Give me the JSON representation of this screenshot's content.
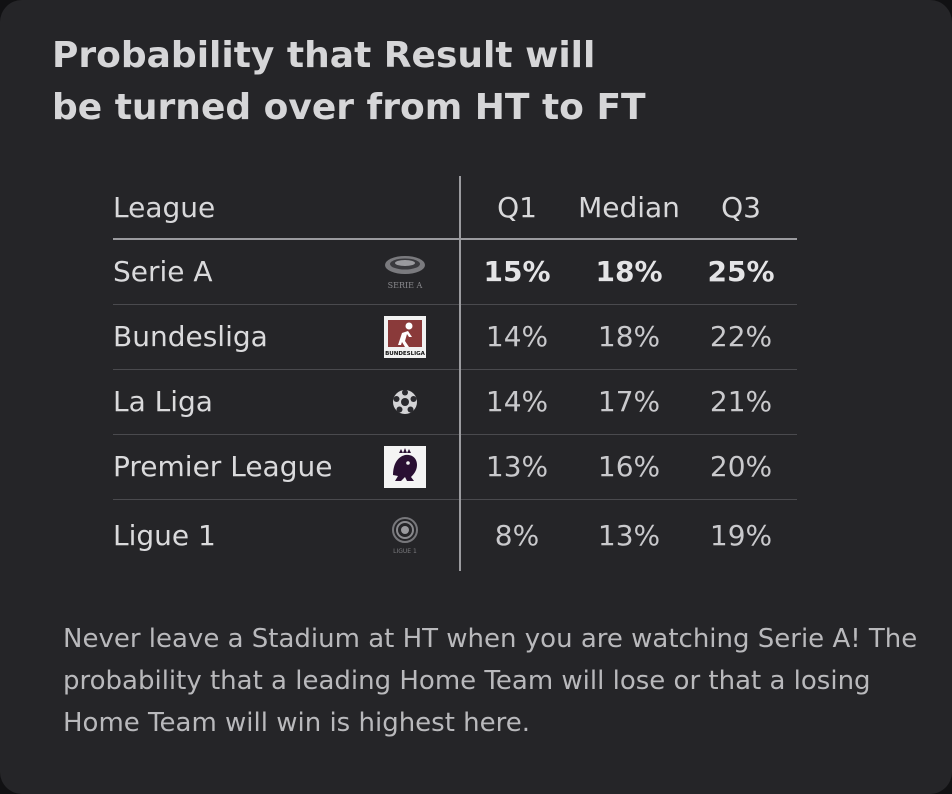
{
  "title": {
    "line1": "Probability that Result will",
    "line2": "be turned over from HT to FT"
  },
  "chart_data": {
    "type": "table",
    "columns": [
      "League",
      "Q1",
      "Median",
      "Q3"
    ],
    "rows": [
      {
        "league": "Serie A",
        "logo": "serie-a-logo",
        "q1": "15%",
        "median": "18%",
        "q3": "25%",
        "highlight": true
      },
      {
        "league": "Bundesliga",
        "logo": "bundesliga-logo",
        "q1": "14%",
        "median": "18%",
        "q3": "22%",
        "highlight": false
      },
      {
        "league": "La Liga",
        "logo": "la-liga-logo",
        "q1": "14%",
        "median": "17%",
        "q3": "21%",
        "highlight": false
      },
      {
        "league": "Premier League",
        "logo": "premier-league-logo",
        "q1": "13%",
        "median": "16%",
        "q3": "20%",
        "highlight": false
      },
      {
        "league": "Ligue 1",
        "logo": "ligue-1-logo",
        "q1": "8%",
        "median": "13%",
        "q3": "19%",
        "highlight": false
      }
    ]
  },
  "logo_text": {
    "serie_a": "SERIE A",
    "bundesliga": "BUNDESLIGA",
    "ligue_1": "LIGUE 1"
  },
  "note": "Never leave a Stadium at HT when you are watching Serie A! The probability that a leading Home Team will lose or that a losing Home Team will win is highest here.",
  "colors": {
    "background": "#252528",
    "text": "#dadadc",
    "rule": "#9b9b9f"
  }
}
